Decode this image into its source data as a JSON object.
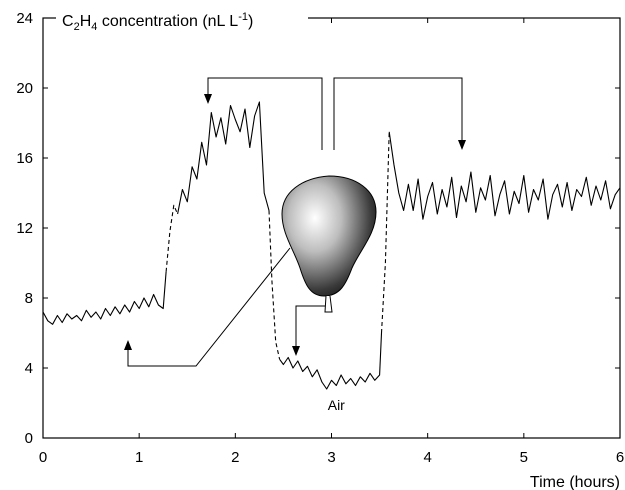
{
  "chart_data": {
    "type": "line",
    "title": "",
    "xlabel": "Time (hours)",
    "ylabel": "C₂H₄ concentration (nL L⁻¹)",
    "ylabel_parts": {
      "pre": "C",
      "sub1": "2",
      "mid": "H",
      "sub2": "4",
      "post": " concentration (nL L",
      "sup": "-1",
      "end": ")"
    },
    "xlim": [
      0,
      6
    ],
    "ylim": [
      0,
      24
    ],
    "x_ticks": [
      0,
      1,
      2,
      3,
      4,
      5,
      6
    ],
    "y_ticks": [
      0,
      4,
      8,
      12,
      16,
      20,
      24
    ],
    "grid": false,
    "annotations": [
      {
        "text": "Air",
        "x": 3.05,
        "y": 1.6
      }
    ],
    "series": [
      {
        "x": [
          0,
          0.05,
          0.1,
          0.15,
          0.2,
          0.25,
          0.3,
          0.35,
          0.4,
          0.45,
          0.5,
          0.55,
          0.6,
          0.65,
          0.7,
          0.75,
          0.8,
          0.85,
          0.9,
          0.95,
          1.0,
          1.05,
          1.1,
          1.15,
          1.2,
          1.25,
          1.28,
          1.32,
          1.36,
          1.4,
          1.45,
          1.5,
          1.55,
          1.6,
          1.65,
          1.7,
          1.75,
          1.8,
          1.85,
          1.9,
          1.95,
          2.0,
          2.05,
          2.1,
          2.15,
          2.2,
          2.25,
          2.3,
          2.35,
          2.38,
          2.42,
          2.46,
          2.5,
          2.55,
          2.6,
          2.65,
          2.7,
          2.75,
          2.8,
          2.85,
          2.9,
          2.95,
          3.0,
          3.05,
          3.1,
          3.15,
          3.2,
          3.25,
          3.3,
          3.35,
          3.4,
          3.45,
          3.5,
          3.52,
          3.56,
          3.6,
          3.65,
          3.7,
          3.75,
          3.8,
          3.85,
          3.9,
          3.95,
          4.0,
          4.05,
          4.1,
          4.15,
          4.2,
          4.25,
          4.3,
          4.35,
          4.4,
          4.45,
          4.5,
          4.55,
          4.6,
          4.65,
          4.7,
          4.75,
          4.8,
          4.85,
          4.9,
          4.95,
          5.0,
          5.05,
          5.1,
          5.15,
          5.2,
          5.25,
          5.3,
          5.35,
          5.4,
          5.45,
          5.5,
          5.55,
          5.6,
          5.65,
          5.7,
          5.75,
          5.8,
          5.85,
          5.9,
          5.95,
          6.0
        ],
        "y": [
          7.2,
          6.7,
          6.5,
          7.0,
          6.6,
          7.1,
          6.8,
          7.0,
          6.7,
          7.3,
          6.9,
          7.2,
          6.8,
          7.4,
          7.0,
          7.5,
          7.1,
          7.6,
          7.2,
          7.8,
          7.4,
          8.0,
          7.5,
          8.2,
          7.6,
          7.4,
          9.5,
          11.8,
          13.3,
          12.8,
          14.2,
          13.5,
          15.5,
          14.8,
          16.9,
          15.6,
          18.6,
          17.2,
          18.3,
          16.8,
          19.0,
          18.2,
          17.5,
          18.8,
          16.6,
          18.4,
          19.2,
          14.0,
          13.0,
          9.0,
          5.5,
          4.5,
          4.2,
          4.6,
          4.0,
          4.4,
          3.8,
          4.1,
          3.5,
          3.9,
          3.2,
          2.8,
          3.3,
          3.0,
          3.6,
          3.1,
          3.4,
          3.0,
          3.5,
          3.2,
          3.7,
          3.3,
          3.6,
          6.0,
          10.0,
          17.5,
          15.6,
          14.0,
          13.0,
          14.5,
          13.0,
          14.8,
          12.5,
          13.8,
          14.6,
          12.8,
          14.2,
          13.2,
          14.9,
          12.6,
          14.4,
          13.5,
          15.2,
          12.9,
          14.3,
          13.6,
          15.0,
          12.7,
          13.9,
          14.7,
          12.8,
          14.1,
          13.4,
          15.0,
          12.9,
          14.2,
          13.6,
          14.8,
          12.5,
          13.9,
          14.5,
          13.2,
          14.6,
          13.0,
          14.2,
          13.8,
          14.9,
          13.3,
          14.4,
          13.6,
          14.7,
          13.1,
          13.9,
          14.3
        ],
        "segment_styles": [
          {
            "from_x": 0,
            "to_x": 1.28,
            "style": "solid"
          },
          {
            "from_x": 1.28,
            "to_x": 1.4,
            "style": "dashed"
          },
          {
            "from_x": 1.4,
            "to_x": 2.35,
            "style": "solid"
          },
          {
            "from_x": 2.35,
            "to_x": 2.46,
            "style": "dashed"
          },
          {
            "from_x": 2.46,
            "to_x": 3.52,
            "style": "solid"
          },
          {
            "from_x": 3.52,
            "to_x": 3.6,
            "style": "dashed"
          },
          {
            "from_x": 3.6,
            "to_x": 6.0,
            "style": "solid"
          }
        ]
      }
    ]
  },
  "illustration": {
    "name": "pear-icon"
  }
}
